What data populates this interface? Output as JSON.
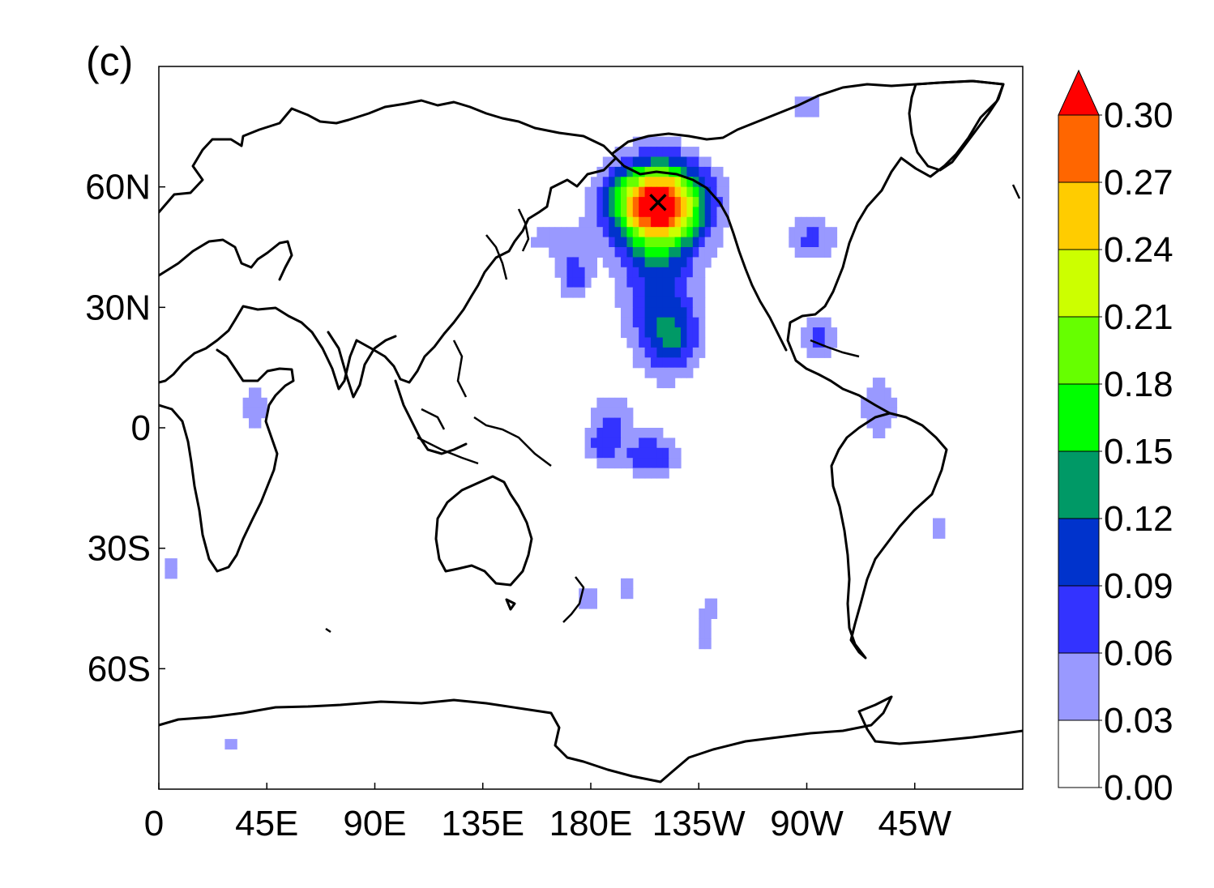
{
  "panel_label": "(c)",
  "chart_data": {
    "type": "heatmap",
    "projection": "cylindrical equidistant",
    "center_longitude": 180,
    "lon_range": [
      0,
      360
    ],
    "lat_range": [
      -90,
      90
    ],
    "x_ticks": [
      {
        "lon": 0,
        "label": "0"
      },
      {
        "lon": 45,
        "label": "45E"
      },
      {
        "lon": 90,
        "label": "90E"
      },
      {
        "lon": 135,
        "label": "135E"
      },
      {
        "lon": 180,
        "label": "180E"
      },
      {
        "lon": 225,
        "label": "135W"
      },
      {
        "lon": 270,
        "label": "90W"
      },
      {
        "lon": 315,
        "label": "45W"
      }
    ],
    "y_ticks": [
      {
        "lat": 60,
        "label": "60N"
      },
      {
        "lat": 30,
        "label": "30N"
      },
      {
        "lat": 0,
        "label": "0"
      },
      {
        "lat": -30,
        "label": "30S"
      },
      {
        "lat": -60,
        "label": "60S"
      }
    ],
    "colorbar": {
      "levels": [
        "0.00",
        "0.03",
        "0.06",
        "0.09",
        "0.12",
        "0.15",
        "0.18",
        "0.21",
        "0.24",
        "0.27",
        "0.30"
      ],
      "colors": [
        "#ffffff",
        "#9999ff",
        "#3333ff",
        "#0033cc",
        "#009966",
        "#00ff00",
        "#66ff00",
        "#ccff00",
        "#ffcc00",
        "#ff6600",
        "#ff0000"
      ],
      "extend": "max"
    },
    "marker": {
      "symbol": "×",
      "lon": 208,
      "lat": 56
    },
    "features": [
      {
        "lon": 208,
        "lat": 56,
        "peak": 0.3,
        "sx": 14,
        "sy": 7
      },
      {
        "lon": 208,
        "lat": 40,
        "peak": 0.1,
        "sx": 12,
        "sy": 15
      },
      {
        "lon": 214,
        "lat": 22,
        "peak": 0.09,
        "sx": 8,
        "sy": 6
      },
      {
        "lon": 205,
        "lat": -7,
        "peak": 0.09,
        "sx": 8,
        "sy": 4
      },
      {
        "lon": 188,
        "lat": 2,
        "peak": 0.06,
        "sx": 7,
        "sy": 5
      },
      {
        "lon": 185,
        "lat": -5,
        "peak": 0.06,
        "sx": 5,
        "sy": 3
      },
      {
        "lon": 173,
        "lat": 38,
        "peak": 0.08,
        "sx": 5,
        "sy": 4
      },
      {
        "lon": 165,
        "lat": 47,
        "peak": 0.05,
        "sx": 10,
        "sy": 3
      },
      {
        "lon": 275,
        "lat": 22,
        "peak": 0.08,
        "sx": 5,
        "sy": 4
      },
      {
        "lon": 272,
        "lat": 47,
        "peak": 0.07,
        "sx": 8,
        "sy": 4
      },
      {
        "lon": 300,
        "lat": 5,
        "peak": 0.06,
        "sx": 6,
        "sy": 6
      },
      {
        "lon": 40,
        "lat": 5,
        "peak": 0.05,
        "sx": 4,
        "sy": 4
      },
      {
        "lon": 5,
        "lat": -35,
        "peak": 0.05,
        "sx": 3,
        "sy": 3
      },
      {
        "lon": 325,
        "lat": -25,
        "peak": 0.05,
        "sx": 3,
        "sy": 3
      },
      {
        "lon": 178,
        "lat": -43,
        "peak": 0.05,
        "sx": 4,
        "sy": 3
      },
      {
        "lon": 230,
        "lat": -45,
        "peak": 0.05,
        "sx": 4,
        "sy": 3
      },
      {
        "lon": 227,
        "lat": -53,
        "peak": 0.05,
        "sx": 3,
        "sy": 3
      },
      {
        "lon": 195,
        "lat": -40,
        "peak": 0.05,
        "sx": 3,
        "sy": 4
      },
      {
        "lon": 270,
        "lat": 80,
        "peak": 0.05,
        "sx": 6,
        "sy": 3
      },
      {
        "lon": 30,
        "lat": -79,
        "peak": 0.05,
        "sx": 3,
        "sy": 2
      }
    ]
  }
}
